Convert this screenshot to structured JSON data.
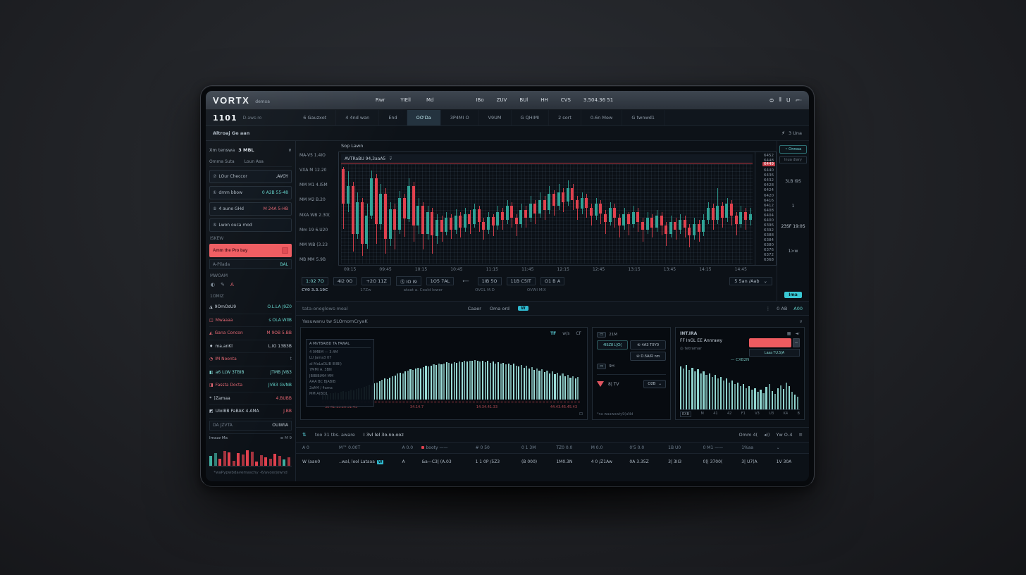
{
  "header": {
    "logo": "VORTX",
    "logo_sub": "demxa",
    "nav": [
      "Rwr",
      "YIEll",
      "Md"
    ],
    "nav_right": [
      "IBo",
      "ZUV",
      "BUl",
      "HH",
      "CVS",
      "3.504.36 51"
    ],
    "window_icons": [
      "⊜",
      "⦀",
      "U",
      "⌐·"
    ]
  },
  "menubar": {
    "ticker": "1101",
    "ticker_sub": "D-aws-ro",
    "tabs": [
      "6 Gauzxot",
      "4 4nd wan",
      "End",
      "OO'Da",
      "3P4MI O",
      "V9UM",
      "G QHIMI",
      "2 sort",
      "0.6n Mew",
      "G twnwd1"
    ],
    "active_tab": 3
  },
  "breadcrumb": {
    "left": "Altroaj Ge aan",
    "right": "3 Una"
  },
  "sidebar": {
    "instrument": "Xm tenswa",
    "instrument_value": "3 MBL",
    "tabs": [
      "Omma Suta",
      "Loun Asa"
    ],
    "info_rows": [
      {
        "icon": "⑦",
        "label": "LOur Checcor",
        "value": ",AVOY",
        "vc": "light"
      },
      {
        "icon": "①",
        "label": "dmm bbow",
        "value": "0 A2B 55-48",
        "vc": "teal"
      },
      {
        "icon": "⑤",
        "label": "4 aune GHd",
        "value": "M 24A 5-HB",
        "vc": "red"
      },
      {
        "icon": "⑤",
        "label": "Lwon ouca mod",
        "value": "",
        "vc": "light"
      }
    ],
    "skew_label": "ISKEW",
    "alert_button": "Amm the Pro bay",
    "balance_label": "A-Pilada",
    "balance_value": "BAL",
    "section1": "MWOAM",
    "section2": "1OMIZ",
    "watchlist": [
      {
        "icon": "◮",
        "label": "9OmOsU9",
        "lc": "light",
        "value": "O.L.LA J9Z0",
        "vc": "teal"
      },
      {
        "icon": "◫",
        "label": "Mwaaaa",
        "lc": "red",
        "value": "s OLA WllB",
        "vc": "teal"
      },
      {
        "icon": "◭",
        "label": "Gana Concon",
        "lc": "red",
        "value": "M 9OB 5.BB",
        "vc": "red"
      },
      {
        "icon": "♦",
        "label": "ma.anKl",
        "lc": "light",
        "value": "L.IO 13B3B",
        "vc": "light"
      },
      {
        "icon": "◔",
        "label": "IM Noonta",
        "lc": "red",
        "value": "t",
        "vc": "dim"
      },
      {
        "icon": "◧",
        "label": "a6 LLW 3TBIB",
        "lc": "teal",
        "value": "JTMB JVB3",
        "vc": "teal",
        "hl": true
      },
      {
        "icon": "◨",
        "label": "Fassta Docta",
        "lc": "red",
        "value": "JVB3 GVNB",
        "vc": "teal"
      },
      {
        "icon": "⌖",
        "label": ")Zamaa",
        "lc": "light",
        "value": "4.BUBB",
        "vc": "red"
      },
      {
        "icon": "◩",
        "label": "UIoIBB PaBAK 4.AMA",
        "lc": "light",
        "value": "J.BB",
        "vc": "red"
      }
    ],
    "footer_label": "DA JZVTA",
    "footer_value": "OUIWIA",
    "mini_title": "Imazz Ma",
    "mini_legend": "≡ M 9",
    "caption": "*waPypwbdavemaschy -6/avoorjownd"
  },
  "toolbar": {
    "values": [
      "1:02 7O",
      "4I2 0O",
      "+2O 11Z",
      "Ⓢ IO I9",
      "1O5 7AL",
      "⟵",
      "1IB 5O",
      "11B C5IT",
      "O1 B A"
    ],
    "dropdown": "5 5an /Aab",
    "captions": [
      "CY0 3.3.19C",
      "17Zw",
      "ataat a. Could lower",
      "OVGL M.D",
      "OVWI MIX"
    ]
  },
  "strip": {
    "left": "tata-oneglows-meal",
    "center_items": [
      "Caaer",
      "Oma ord"
    ],
    "badge": "W",
    "right_items": [
      "0 AB",
      "A00"
    ]
  },
  "section_title": "Yasuwanu tw SLOmomCryaK",
  "panel_left": {
    "icons": [
      "TF",
      "w/s",
      "CF"
    ],
    "overlay_rows": [
      "A MVTBAIBD TA FAWAL",
      "4 0MBM — 3.4M",
      "LU Jama3 07",
      "aI MaLaOLIB IBIBI)",
      "7MMI A. 3BN",
      "JBIBIBIAM MM",
      "AAA BC BJABIB",
      "2aM4 / 4ama",
      "MM A(BO1"
    ],
    "red_ticks": [
      "30.41.13.20.31.43",
      "34.14.7",
      "14.34.41.33",
      "44.43.45.45.43"
    ]
  },
  "panel_mid": {
    "chip1": "21M",
    "btn1": "4I5Z8 L[O(",
    "btn2": "④ 4A3 T0Y0",
    "btn3": "④ D.5A/R nm",
    "chip2": "9H",
    "tv_text": "8| TV",
    "order_button": "O2B",
    "caption": "*na waawawiy9(aNd"
  },
  "panel_right": {
    "title": "INT.IRA",
    "icons": [
      "▦",
      "◄·"
    ],
    "row_label": "FF InGL EE Annrawy",
    "row_sub": "◎ tetramar",
    "mini_btn": "−",
    "dark_btn": "Laaa TU.5(A",
    "hist_label": "— CXB2N"
  },
  "bottom_toolbar": {
    "left_items": [
      "too 31 tbs. aware",
      "I 3vl lel 3o.no.ooz"
    ],
    "right_items": [
      "Omm 4(",
      "Yw O-4"
    ]
  },
  "table": {
    "columns": [
      "A 0",
      "M™ 0.00T",
      "A 0.0",
      "booty ——",
      "# 0 50",
      "0 1 3M",
      "TZ0 0.0",
      "M 0.0",
      "0'5 0.0",
      "1B U0",
      "0 M1 ——",
      "1%aa",
      "⌄"
    ],
    "dot_column": 3,
    "row": [
      "W (aan0",
      "..wal, lool Lataaa",
      "A",
      "&a—C3| (A.03",
      "1 1 0P /5Z3",
      "(B 000)",
      "1M0.3N",
      "4 0 /Z1Aw",
      "0A 3.35Z",
      "3| 3II3",
      "0)| 3700(",
      "3| U7(A",
      "1V 30A"
    ],
    "badge_cell": 1,
    "badge_text": "W"
  },
  "rail": {
    "button": "Onrsua",
    "label": "lnua diary",
    "values": [
      "3LB I9S",
      "1",
      "23SF 19:0S",
      "1>w"
    ],
    "badge": "Ima"
  },
  "chart_data": [
    {
      "id": "main",
      "type": "candlestick",
      "title": "Sop Lawn",
      "legend": "AVTRaBU 94,3aaA5",
      "up_color": "#2fa396",
      "down_color": "#e0414e",
      "price_line_label": "6449",
      "x_labels": [
        "09:15",
        "09:45",
        "10:15",
        "10:45",
        "11:15",
        "11:45",
        "12:15",
        "12:45",
        "13:15",
        "13:45",
        "14:15",
        "14:45"
      ],
      "y_right_labels": [
        "6452",
        "6448",
        "6444",
        "6440",
        "6436",
        "6432",
        "6428",
        "6424",
        "6420",
        "6416",
        "6412",
        "6408",
        "6404",
        "6400",
        "6396",
        "6392",
        "6388",
        "6384",
        "6380",
        "6376",
        "6372",
        "6368"
      ],
      "y_left_labels": [
        "MA-V5 1.4IO",
        "VXA M 12.20",
        "MM M1 4.I5M",
        "MM M2 B.20",
        "MXA WB 2.30(",
        "Mm 19 6.U20",
        "MM WB (3.23",
        "MB MM 5.9B"
      ],
      "candles": [
        [
          95,
          60,
          35,
          97
        ],
        [
          60,
          78,
          52,
          93
        ],
        [
          78,
          30,
          12,
          82
        ],
        [
          30,
          62,
          25,
          72
        ],
        [
          62,
          20,
          8,
          66
        ],
        [
          20,
          48,
          15,
          60
        ],
        [
          48,
          86,
          45,
          94
        ],
        [
          86,
          40,
          20,
          90
        ],
        [
          40,
          70,
          34,
          80
        ],
        [
          70,
          25,
          10,
          76
        ],
        [
          25,
          55,
          18,
          62
        ],
        [
          55,
          34,
          14,
          60
        ],
        [
          34,
          66,
          30,
          73
        ],
        [
          66,
          45,
          27,
          70
        ],
        [
          45,
          78,
          42,
          86
        ],
        [
          78,
          38,
          22,
          82
        ],
        [
          38,
          58,
          30,
          66
        ],
        [
          58,
          30,
          14,
          62
        ],
        [
          30,
          52,
          24,
          58
        ],
        [
          52,
          28,
          10,
          56
        ],
        [
          28,
          44,
          20,
          50
        ],
        [
          44,
          32,
          22,
          48
        ],
        [
          32,
          46,
          28,
          52
        ],
        [
          46,
          34,
          25,
          50
        ],
        [
          34,
          48,
          30,
          55
        ],
        [
          48,
          36,
          26,
          52
        ],
        [
          36,
          50,
          32,
          56
        ],
        [
          50,
          40,
          30,
          54
        ],
        [
          40,
          55,
          36,
          60
        ],
        [
          55,
          42,
          32,
          58
        ],
        [
          42,
          34,
          24,
          46
        ],
        [
          34,
          47,
          30,
          52
        ],
        [
          47,
          38,
          28,
          50
        ],
        [
          38,
          52,
          34,
          58
        ],
        [
          52,
          44,
          34,
          56
        ],
        [
          44,
          58,
          40,
          64
        ],
        [
          58,
          46,
          36,
          62
        ],
        [
          46,
          40,
          28,
          50
        ],
        [
          40,
          54,
          36,
          60
        ],
        [
          54,
          46,
          36,
          58
        ],
        [
          46,
          60,
          42,
          68
        ],
        [
          60,
          50,
          40,
          64
        ],
        [
          50,
          64,
          46,
          72
        ],
        [
          64,
          54,
          44,
          68
        ],
        [
          54,
          70,
          50,
          78
        ],
        [
          70,
          58,
          48,
          74
        ],
        [
          58,
          72,
          54,
          80
        ],
        [
          72,
          62,
          52,
          76
        ],
        [
          62,
          76,
          58,
          84
        ],
        [
          76,
          64,
          54,
          80
        ],
        [
          64,
          55,
          44,
          68
        ],
        [
          55,
          66,
          50,
          72
        ],
        [
          66,
          56,
          46,
          70
        ],
        [
          56,
          48,
          38,
          60
        ],
        [
          48,
          60,
          44,
          66
        ],
        [
          60,
          50,
          40,
          64
        ],
        [
          50,
          42,
          30,
          54
        ],
        [
          42,
          56,
          38,
          62
        ],
        [
          56,
          46,
          36,
          60
        ],
        [
          46,
          38,
          26,
          50
        ],
        [
          38,
          50,
          34,
          56
        ],
        [
          50,
          40,
          28,
          52
        ],
        [
          40,
          52,
          36,
          58
        ],
        [
          52,
          42,
          32,
          56
        ],
        [
          42,
          34,
          22,
          46
        ],
        [
          34,
          46,
          30,
          52
        ],
        [
          46,
          36,
          26,
          50
        ],
        [
          36,
          48,
          32,
          54
        ],
        [
          48,
          38,
          28,
          52
        ],
        [
          38,
          30,
          18,
          42
        ],
        [
          30,
          42,
          26,
          48
        ],
        [
          42,
          34,
          24,
          46
        ],
        [
          34,
          44,
          30,
          50
        ],
        [
          44,
          36,
          26,
          48
        ],
        [
          36,
          28,
          16,
          40
        ],
        [
          28,
          40,
          24,
          46
        ],
        [
          40,
          32,
          22,
          44
        ],
        [
          32,
          44,
          28,
          50
        ],
        [
          44,
          56,
          40,
          62
        ],
        [
          56,
          44,
          34,
          60
        ],
        [
          44,
          58,
          40,
          76
        ],
        [
          58,
          46,
          36,
          62
        ],
        [
          46,
          60,
          42,
          66
        ],
        [
          60,
          48,
          38,
          64
        ],
        [
          48,
          40,
          28,
          52
        ],
        [
          40,
          52,
          36,
          58
        ],
        [
          52,
          44,
          34,
          56
        ],
        [
          44,
          50,
          38,
          56
        ]
      ]
    },
    {
      "id": "volume",
      "type": "bar",
      "color": "#9adbd6",
      "values": [
        8,
        10,
        9,
        12,
        11,
        13,
        12,
        14,
        15,
        14,
        16,
        18,
        17,
        19,
        21,
        20,
        23,
        25,
        27,
        26,
        29,
        31,
        33,
        36,
        38,
        37,
        40,
        42,
        44,
        47,
        49,
        48,
        51,
        53,
        55,
        54,
        57,
        58,
        56,
        59,
        61,
        60,
        62,
        64,
        63,
        65,
        64,
        66,
        68,
        67,
        66,
        68,
        67,
        69,
        68,
        70,
        69,
        71,
        70,
        72,
        70,
        69,
        71,
        68,
        70,
        67,
        69,
        66,
        68,
        65,
        67,
        64,
        66,
        63,
        65,
        62,
        60,
        63,
        58,
        61,
        56,
        59,
        54,
        57,
        52,
        55,
        50,
        53,
        48,
        51,
        46,
        49,
        44,
        47,
        42,
        45,
        40,
        43,
        38,
        41
      ]
    },
    {
      "id": "depth",
      "type": "bar",
      "color": "#8fd4ce",
      "values": [
        92,
        88,
        95,
        85,
        90,
        82,
        86,
        78,
        82,
        75,
        78,
        70,
        74,
        66,
        70,
        62,
        66,
        58,
        62,
        54,
        58,
        50,
        54,
        46,
        50,
        42,
        46,
        38,
        42,
        35,
        48,
        55,
        40,
        33,
        45,
        52,
        44,
        58,
        50,
        38,
        32,
        28
      ],
      "x_labels": [
        "EXB",
        "M",
        "41",
        "42",
        "F1",
        "V3",
        "U3",
        "K4",
        "B"
      ]
    },
    {
      "id": "mini",
      "type": "bar",
      "up_color": "#3fae9f",
      "down_color": "#e0414e",
      "values": [
        40,
        52,
        28,
        62,
        56,
        20,
        54,
        46,
        64,
        58,
        16,
        44,
        34,
        30,
        50,
        40,
        26,
        36
      ],
      "colors": "ttrrrrrrrrrrrrrrtr"
    }
  ]
}
